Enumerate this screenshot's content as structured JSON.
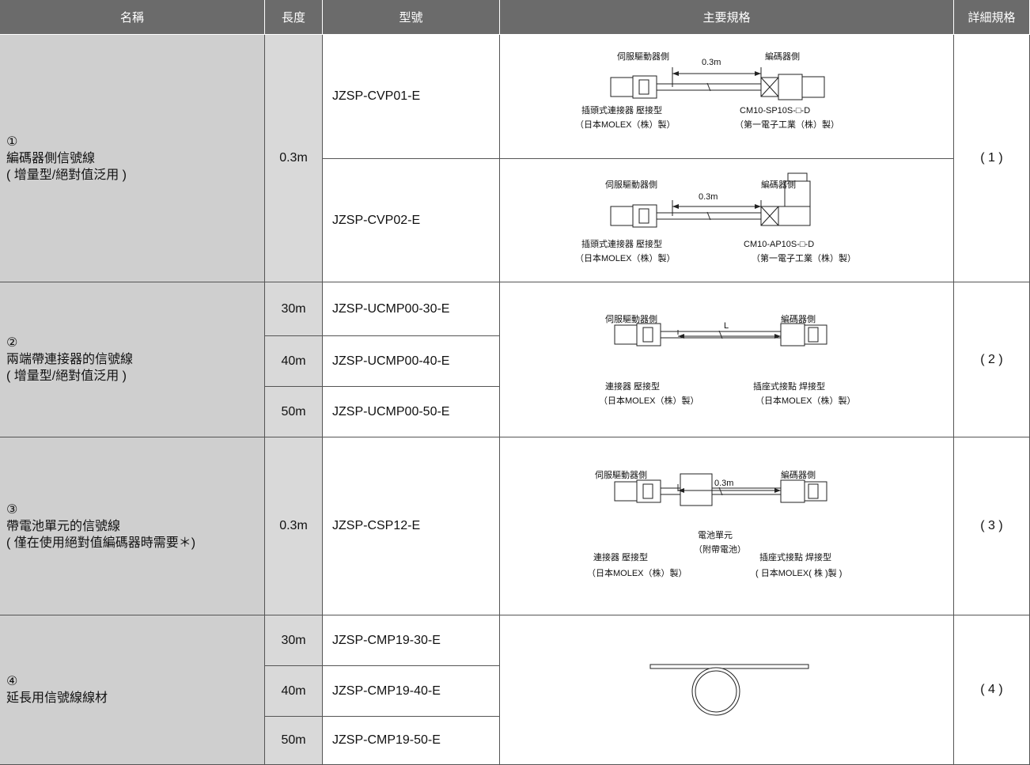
{
  "table": {
    "header": [
      "名稱",
      "長度",
      "型號",
      "主要規格",
      "詳細規格"
    ],
    "groups": [
      {
        "number": "①",
        "name": "編碼器側信號線",
        "note": "( 增量型/絕對值泛用 )",
        "detail": "( 1 )",
        "lengths": [
          "0.3m"
        ],
        "models": [
          "JZSP-CVP01-E",
          "JZSP-CVP02-E"
        ],
        "specs": [
          {
            "labels": [
              "伺服驅動器側",
              "0.3m",
              "編碼器側",
              "插頭式連接器 壓接型",
              "（日本MOLEX（株）製）",
              "CM10-SP10S-□-D",
              "（第一電子工業（株）製）"
            ]
          },
          {
            "labels": [
              "伺服驅動器側",
              "0.3m",
              "編碼器側",
              "插頭式連接器 壓接型",
              "（日本MOLEX（株）製）",
              "CM10-AP10S-□-D",
              "（第一電子工業（株）製）"
            ]
          }
        ]
      },
      {
        "number": "②",
        "name": "兩端帶連接器的信號線",
        "note": "( 增量型/絕對值泛用 )",
        "detail": "( 2 )",
        "lengths": [
          "30m",
          "40m",
          "50m"
        ],
        "models": [
          "JZSP-UCMP00-30-E",
          "JZSP-UCMP00-40-E",
          "JZSP-UCMP00-50-E"
        ],
        "specs": [
          {
            "labels": [
              "伺服驅動器側",
              "L",
              "編碼器側",
              "連接器 壓接型",
              "（日本MOLEX（株）製）",
              "插座式接點 焊接型",
              "（日本MOLEX（株）製）"
            ]
          }
        ]
      },
      {
        "number": "③",
        "name": "帶電池單元的信號線",
        "note": "( 僅在使用絕對值編碼器時需要＊)",
        "detail": "( 3 )",
        "lengths": [
          "0.3m"
        ],
        "models": [
          "JZSP-CSP12-E"
        ],
        "specs": [
          {
            "labels": [
              "伺服驅動器側",
              "0.3m",
              "編碼器側",
              "連接器 壓接型",
              "（日本MOLEX（株）製）",
              "插座式接點 焊接型",
              "( 日本MOLEX( 株 )製 )",
              "電池單元",
              "（附帶電池）"
            ]
          }
        ]
      },
      {
        "number": "④",
        "name": "延長用信號線線材",
        "detail": "( 4 )",
        "lengths": [
          "30m",
          "40m",
          "50m"
        ],
        "models": [
          "JZSP-CMP19-30-E",
          "JZSP-CMP19-40-E",
          "JZSP-CMP19-50-E"
        ],
        "specs": []
      }
    ]
  }
}
